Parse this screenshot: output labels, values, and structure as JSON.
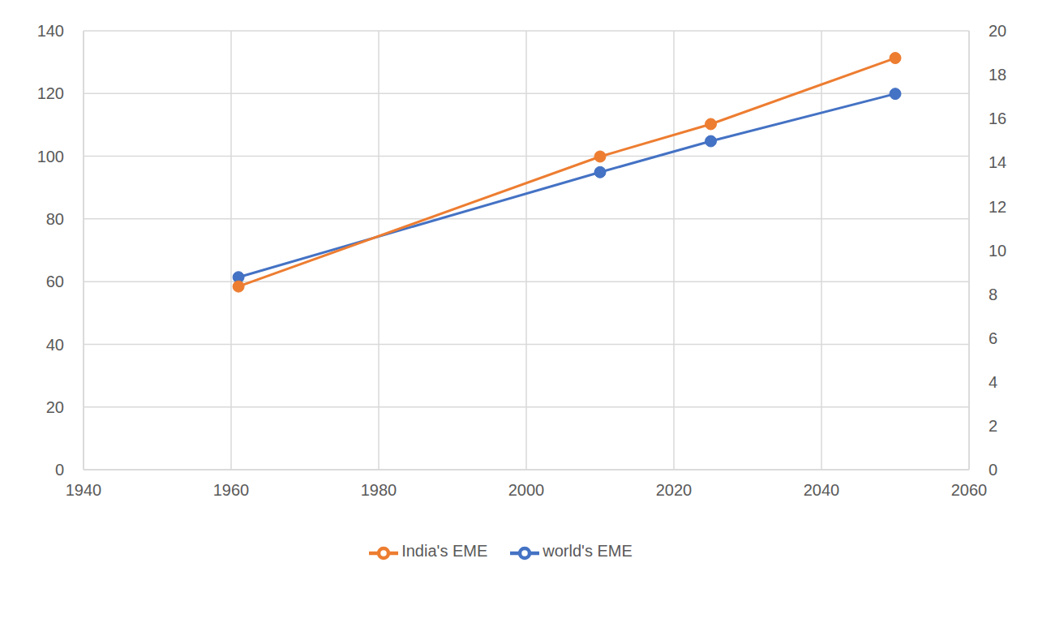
{
  "chart_data": {
    "type": "line",
    "x": [
      1961,
      2010,
      2025,
      2050
    ],
    "series": [
      {
        "name": "world's EME",
        "color": "#4472c4",
        "values": [
          61.4,
          94.9,
          104.8,
          119.9
        ],
        "marker": "circle",
        "line_style": "solid"
      },
      {
        "name": "India's EME",
        "color": "#ed7d31",
        "values": [
          8.35,
          14.27,
          15.75,
          18.76
        ],
        "axis": "y2",
        "marker": "circle",
        "line_style": "solid"
      }
    ],
    "xlim": [
      1940,
      2060
    ],
    "xticks": [
      1940,
      1960,
      1980,
      2000,
      2020,
      2040,
      2060
    ],
    "ylim": [
      0,
      140
    ],
    "yticks": [
      0,
      20,
      40,
      60,
      80,
      100,
      120,
      140
    ],
    "y2lim": [
      0,
      20
    ],
    "y2ticks": [
      0,
      2,
      4,
      6,
      8,
      10,
      12,
      14,
      16,
      18,
      20
    ],
    "grid": true,
    "legend": "bottom"
  }
}
